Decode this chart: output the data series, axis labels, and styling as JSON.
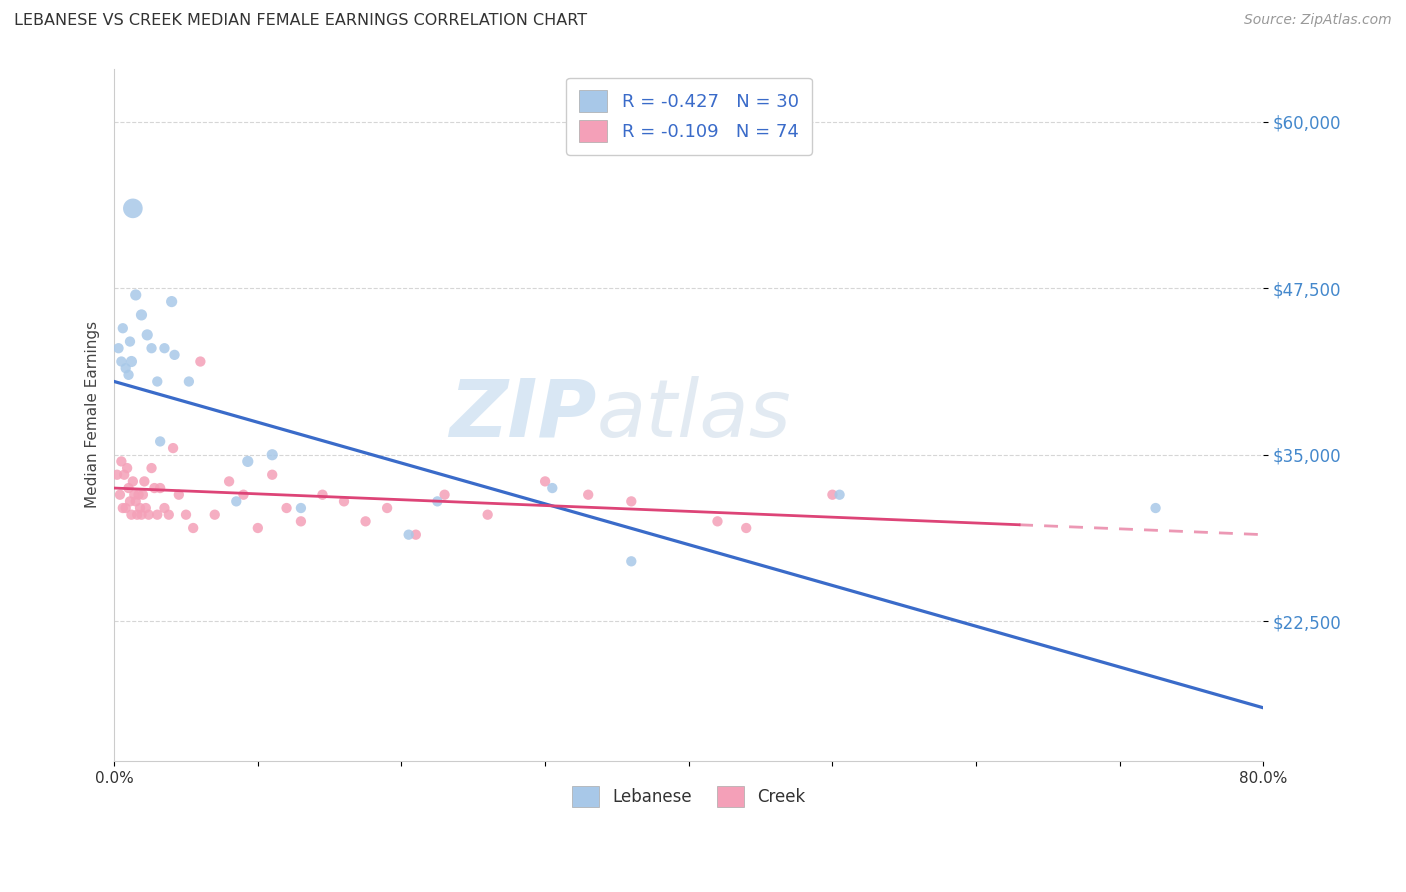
{
  "title": "LEBANESE VS CREEK MEDIAN FEMALE EARNINGS CORRELATION CHART",
  "source": "Source: ZipAtlas.com",
  "ylabel": "Median Female Earnings",
  "xmin": 0.0,
  "xmax": 80.0,
  "ymin": 12000,
  "ymax": 64000,
  "yticks": [
    22500,
    35000,
    47500,
    60000
  ],
  "ytick_labels": [
    "$22,500",
    "$35,000",
    "$47,500",
    "$60,000"
  ],
  "xticks": [
    0.0,
    10.0,
    20.0,
    30.0,
    40.0,
    50.0,
    60.0,
    70.0,
    80.0
  ],
  "grid_color": "#cccccc",
  "blue_line_color": "#3a6bc9",
  "pink_line_color": "#dd4477",
  "blue_scatter_color": "#a8c8e8",
  "pink_scatter_color": "#f4a0b8",
  "title_color": "#333333",
  "source_color": "#999999",
  "ytick_color": "#4488cc",
  "watermark": "ZIPatlas",
  "watermark_color": "#cce0f0",
  "legend_r_color": "#3a6bc9",
  "legend_label1": "Lebanese",
  "legend_label2": "Creek",
  "leb_R": "-0.427",
  "leb_N": "30",
  "creek_R": "-0.109",
  "creek_N": "74",
  "blue_line_x0": 0.0,
  "blue_line_y0": 40500,
  "blue_line_x1": 80.0,
  "blue_line_y1": 16000,
  "pink_line_x0": 0.0,
  "pink_line_y0": 32500,
  "pink_line_x1": 80.0,
  "pink_line_y1": 29000,
  "pink_solid_end": 63.0,
  "lebanese_x": [
    0.3,
    0.5,
    0.6,
    0.8,
    1.0,
    1.1,
    1.2,
    1.3,
    1.5,
    1.9,
    2.3,
    2.6,
    3.0,
    3.2,
    3.5,
    4.0,
    4.2,
    5.2,
    8.5,
    9.3,
    11.0,
    13.0,
    20.5,
    22.5,
    30.5,
    36.0,
    50.5,
    72.5
  ],
  "lebanese_y": [
    43000,
    42000,
    44500,
    41500,
    41000,
    43500,
    42000,
    53500,
    47000,
    45500,
    44000,
    43000,
    40500,
    36000,
    43000,
    46500,
    42500,
    40500,
    31500,
    34500,
    35000,
    31000,
    29000,
    31500,
    32500,
    27000,
    32000,
    31000
  ],
  "lebanese_sizes": [
    55,
    55,
    55,
    55,
    55,
    55,
    65,
    200,
    65,
    65,
    65,
    55,
    55,
    55,
    55,
    65,
    55,
    55,
    55,
    65,
    65,
    55,
    55,
    55,
    55,
    55,
    55,
    55
  ],
  "creek_x": [
    0.2,
    0.4,
    0.5,
    0.6,
    0.7,
    0.8,
    0.9,
    1.0,
    1.1,
    1.2,
    1.3,
    1.4,
    1.5,
    1.6,
    1.7,
    1.8,
    1.9,
    2.0,
    2.1,
    2.2,
    2.4,
    2.6,
    2.8,
    3.0,
    3.2,
    3.5,
    3.8,
    4.1,
    4.5,
    5.0,
    5.5,
    6.0,
    7.0,
    8.0,
    9.0,
    10.0,
    11.0,
    12.0,
    13.0,
    14.5,
    16.0,
    17.5,
    19.0,
    21.0,
    23.0,
    26.0,
    30.0,
    33.0,
    36.0,
    42.0,
    44.0,
    50.0
  ],
  "creek_y": [
    33500,
    32000,
    34500,
    31000,
    33500,
    31000,
    34000,
    32500,
    31500,
    30500,
    33000,
    32000,
    31500,
    30500,
    32000,
    31000,
    30500,
    32000,
    33000,
    31000,
    30500,
    34000,
    32500,
    30500,
    32500,
    31000,
    30500,
    35500,
    32000,
    30500,
    29500,
    42000,
    30500,
    33000,
    32000,
    29500,
    33500,
    31000,
    30000,
    32000,
    31500,
    30000,
    31000,
    29000,
    32000,
    30500,
    33000,
    32000,
    31500,
    30000,
    29500,
    32000
  ],
  "creek_sizes": [
    55,
    55,
    55,
    55,
    55,
    55,
    55,
    55,
    55,
    55,
    55,
    55,
    55,
    55,
    55,
    55,
    55,
    55,
    55,
    55,
    55,
    55,
    55,
    55,
    55,
    55,
    55,
    55,
    55,
    55,
    55,
    55,
    55,
    55,
    55,
    55,
    55,
    55,
    55,
    55,
    55,
    55,
    55,
    55,
    55,
    55,
    55,
    55,
    55,
    55,
    55,
    55
  ]
}
